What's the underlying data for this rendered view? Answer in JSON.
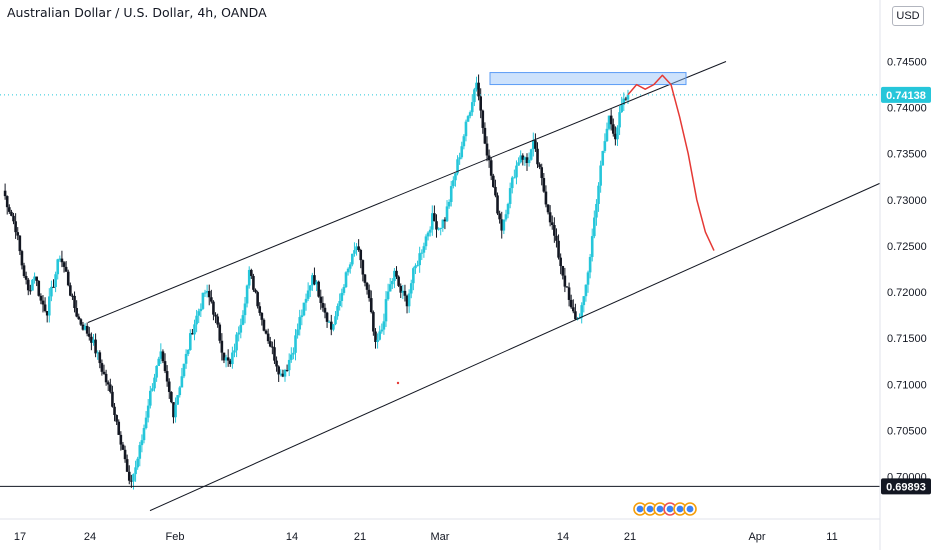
{
  "header": {
    "symbol_title": "Australian Dollar / U.S. Dollar, 4h, OANDA",
    "currency_button": "USD"
  },
  "chart_data": {
    "type": "candlestick",
    "title": "Australian Dollar / U.S. Dollar, 4h, OANDA",
    "ylim": [
      0.6955,
      0.7495
    ],
    "yticks": [
      "0.74500",
      "0.74000",
      "0.73500",
      "0.73000",
      "0.72500",
      "0.72000",
      "0.71500",
      "0.71000",
      "0.70500",
      "0.70000"
    ],
    "xticks": [
      "17",
      "24",
      "Feb",
      "14",
      "21",
      "Mar",
      "14",
      "21",
      "Apr",
      "11"
    ],
    "current_price": "0.74138",
    "support_level": "0.69893",
    "candle_colors": {
      "up": "#26c6da",
      "down": "#131722"
    },
    "price_path": [
      0.731,
      0.729,
      0.727,
      0.723,
      0.72,
      0.722,
      0.719,
      0.718,
      0.721,
      0.724,
      0.722,
      0.719,
      0.717,
      0.716,
      0.715,
      0.713,
      0.711,
      0.709,
      0.706,
      0.703,
      0.699,
      0.701,
      0.704,
      0.708,
      0.711,
      0.713,
      0.71,
      0.707,
      0.71,
      0.713,
      0.716,
      0.718,
      0.72,
      0.719,
      0.716,
      0.713,
      0.712,
      0.715,
      0.718,
      0.722,
      0.72,
      0.717,
      0.715,
      0.713,
      0.711,
      0.712,
      0.714,
      0.717,
      0.719,
      0.722,
      0.72,
      0.718,
      0.716,
      0.718,
      0.721,
      0.723,
      0.725,
      0.722,
      0.719,
      0.714,
      0.716,
      0.72,
      0.722,
      0.72,
      0.719,
      0.722,
      0.724,
      0.726,
      0.728,
      0.727,
      0.728,
      0.731,
      0.734,
      0.737,
      0.74,
      0.743,
      0.738,
      0.734,
      0.73,
      0.727,
      0.73,
      0.733,
      0.735,
      0.734,
      0.736,
      0.733,
      0.73,
      0.727,
      0.724,
      0.721,
      0.718,
      0.717,
      0.719,
      0.724,
      0.73,
      0.735,
      0.739,
      0.737,
      0.74,
      0.7414
    ],
    "channel_upper": {
      "start": [
        "Jan 26",
        0.7167
      ],
      "end": [
        "Mar 28",
        0.745
      ]
    },
    "channel_lower": {
      "start": [
        "Jan 31",
        0.6963
      ],
      "end": [
        "Apr 15",
        0.7318
      ]
    },
    "resistance_zone": {
      "from": "Mar 4",
      "to": "Mar 25",
      "low": 0.7425,
      "high": 0.7438
    },
    "projection_path": [
      0.7414,
      0.7425,
      0.742,
      0.7425,
      0.7435,
      0.7425,
      0.739,
      0.735,
      0.73,
      0.7265,
      0.7245
    ]
  }
}
